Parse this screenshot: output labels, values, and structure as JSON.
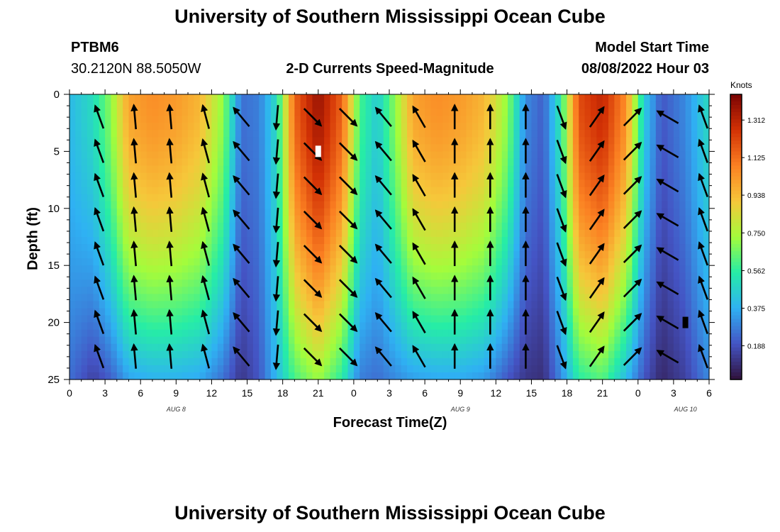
{
  "page": {
    "title_top": "University of Southern Mississippi Ocean Cube",
    "title_bottom": "University of Southern Mississippi Ocean Cube",
    "station_id": "PTBM6",
    "station_coords": "30.2120N  88.5050W",
    "plot_title": "2-D Currents Speed-Magnitude",
    "model_label": "Model Start Time",
    "model_start": "08/08/2022 Hour 03"
  },
  "chart_data": {
    "type": "heatmap",
    "title": "2-D Currents Speed-Magnitude",
    "xlabel": "Forecast Time(Z)",
    "ylabel": "Depth (ft)",
    "x_tick_labels": [
      "0",
      "3",
      "6",
      "9",
      "12",
      "15",
      "18",
      "21",
      "0",
      "3",
      "6",
      "9",
      "12",
      "15",
      "18",
      "21",
      "0",
      "3",
      "6"
    ],
    "x_date_labels": [
      "AUG 8",
      "AUG 9",
      "AUG 10"
    ],
    "x_range_hours": [
      0,
      54
    ],
    "y_tick_labels": [
      "0",
      "5",
      "10",
      "15",
      "20",
      "25"
    ],
    "y_range": [
      0,
      25
    ],
    "y_inverted": true,
    "colorbar": {
      "unit": "Knots",
      "ticks": [
        "1.312",
        "1.125",
        "0.938",
        "0.750",
        "0.562",
        "0.375",
        "0.188"
      ],
      "tick_values": [
        1.312,
        1.125,
        0.938,
        0.75,
        0.562,
        0.375,
        0.188
      ],
      "range": [
        0.02,
        1.44
      ],
      "colors": [
        "#30123b",
        "#4454c4",
        "#2fb1f3",
        "#26eda6",
        "#a4fc3b",
        "#f6c73a",
        "#fb8022",
        "#d23105",
        "#7a0403"
      ]
    },
    "speed_profile_times_h": [
      0,
      2,
      3.5,
      5,
      7,
      9,
      11,
      13,
      14.5,
      16,
      17.5,
      19,
      21,
      23,
      24.5,
      26,
      27.5,
      29,
      31,
      33,
      35,
      37,
      38.5,
      40,
      41.5,
      43,
      45,
      47,
      48.5,
      50,
      52,
      54
    ],
    "surface_speed_knots": [
      0.4,
      0.5,
      0.7,
      1.0,
      1.05,
      1.02,
      0.95,
      0.7,
      0.25,
      0.28,
      0.5,
      1.15,
      1.38,
      1.15,
      0.6,
      0.45,
      0.7,
      1.0,
      1.05,
      1.02,
      0.95,
      0.7,
      0.3,
      0.22,
      0.55,
      1.2,
      1.3,
      1.05,
      0.45,
      0.2,
      0.3,
      0.5
    ],
    "bottom_speed_knots": [
      0.25,
      0.15,
      0.22,
      0.35,
      0.38,
      0.38,
      0.36,
      0.25,
      0.12,
      0.2,
      0.4,
      0.6,
      0.72,
      0.55,
      0.28,
      0.25,
      0.3,
      0.34,
      0.36,
      0.36,
      0.33,
      0.2,
      0.12,
      0.1,
      0.3,
      0.55,
      0.62,
      0.4,
      0.2,
      0.08,
      0.15,
      0.3
    ],
    "arrow_times_h": [
      3,
      6,
      9,
      12,
      15,
      18,
      21,
      24,
      27,
      30,
      33,
      36,
      39,
      42,
      45,
      48,
      51,
      54
    ],
    "arrow_depths_ft": [
      2,
      5,
      8,
      11,
      14,
      17,
      20,
      23
    ],
    "arrow_direction_deg_by_time": [
      -20,
      -5,
      -5,
      -15,
      -40,
      -175,
      135,
      135,
      -40,
      -30,
      0,
      0,
      0,
      160,
      35,
      45,
      -60,
      -20
    ],
    "markers": [
      {
        "time_h": 21,
        "depth_ft": 5,
        "color": "#ffffff"
      },
      {
        "time_h": 52,
        "depth_ft": 20,
        "color": "#000000"
      }
    ]
  }
}
